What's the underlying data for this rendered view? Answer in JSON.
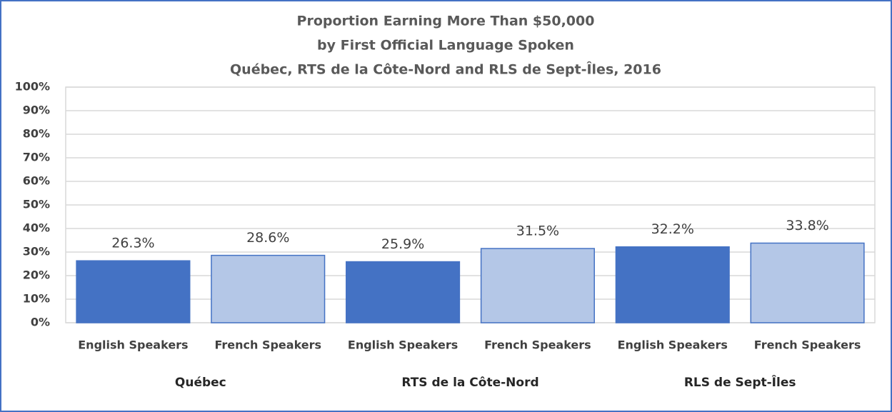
{
  "chart_data": {
    "type": "bar",
    "title": [
      "Proportion Earning More Than $50,000",
      "by First Official Language Spoken",
      "Québec, RTS de la Côte-Nord and RLS de Sept-Îles, 2016"
    ],
    "categories": [
      "English Speakers",
      "French Speakers",
      "English Speakers",
      "French Speakers",
      "English Speakers",
      "French Speakers"
    ],
    "groups": [
      "Québec",
      "RTS de la Côte-Nord",
      "RLS de Sept-Îles"
    ],
    "values": [
      26.3,
      28.6,
      25.9,
      31.5,
      32.2,
      33.8
    ],
    "value_labels": [
      "26.3%",
      "28.6%",
      "25.9%",
      "31.5%",
      "32.2%",
      "33.8%"
    ],
    "colors": [
      "#4472c4",
      "#b4c7e7",
      "#4472c4",
      "#b4c7e7",
      "#4472c4",
      "#b4c7e7"
    ],
    "ylim": [
      0,
      100
    ],
    "yticks": [
      {
        "value": 0,
        "label": "0%"
      },
      {
        "value": 10,
        "label": "10%"
      },
      {
        "value": 20,
        "label": "20%"
      },
      {
        "value": 30,
        "label": "30%"
      },
      {
        "value": 40,
        "label": "40%"
      },
      {
        "value": 50,
        "label": "50%"
      },
      {
        "value": 60,
        "label": "60%"
      },
      {
        "value": 70,
        "label": "70%"
      },
      {
        "value": 80,
        "label": "80%"
      },
      {
        "value": 90,
        "label": "90%"
      },
      {
        "value": 100,
        "label": "100%"
      }
    ],
    "grid": true
  }
}
